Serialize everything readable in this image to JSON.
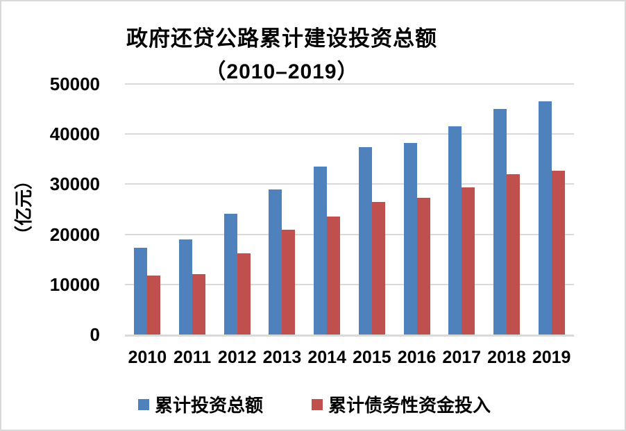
{
  "frame": {
    "background": "#ffffff",
    "border_color": "#d9d9d9"
  },
  "chart_data": {
    "type": "bar",
    "title": "政府还贷公路累计建设投资总额",
    "subtitle": "（2010–2019）",
    "ylabel": "（亿元）",
    "xlabel": "",
    "categories": [
      "2010",
      "2011",
      "2012",
      "2013",
      "2014",
      "2015",
      "2016",
      "2017",
      "2018",
      "2019"
    ],
    "series": [
      {
        "name": "累计投资总额",
        "color": "#4F81BD",
        "values": [
          17300,
          19000,
          24100,
          29000,
          33500,
          37400,
          38200,
          41500,
          45000,
          46500
        ]
      },
      {
        "name": "累计债务性资金投入",
        "color": "#C0504D",
        "values": [
          11800,
          12100,
          16200,
          20900,
          23600,
          26400,
          27300,
          29400,
          32000,
          32700
        ]
      }
    ],
    "ylim": [
      0,
      50000
    ],
    "yticks": [
      0,
      10000,
      20000,
      30000,
      40000,
      50000
    ],
    "grid": true,
    "grid_color": "#d9d9d9",
    "axis_color": "#d9d9d9",
    "legend_position": "bottom"
  }
}
